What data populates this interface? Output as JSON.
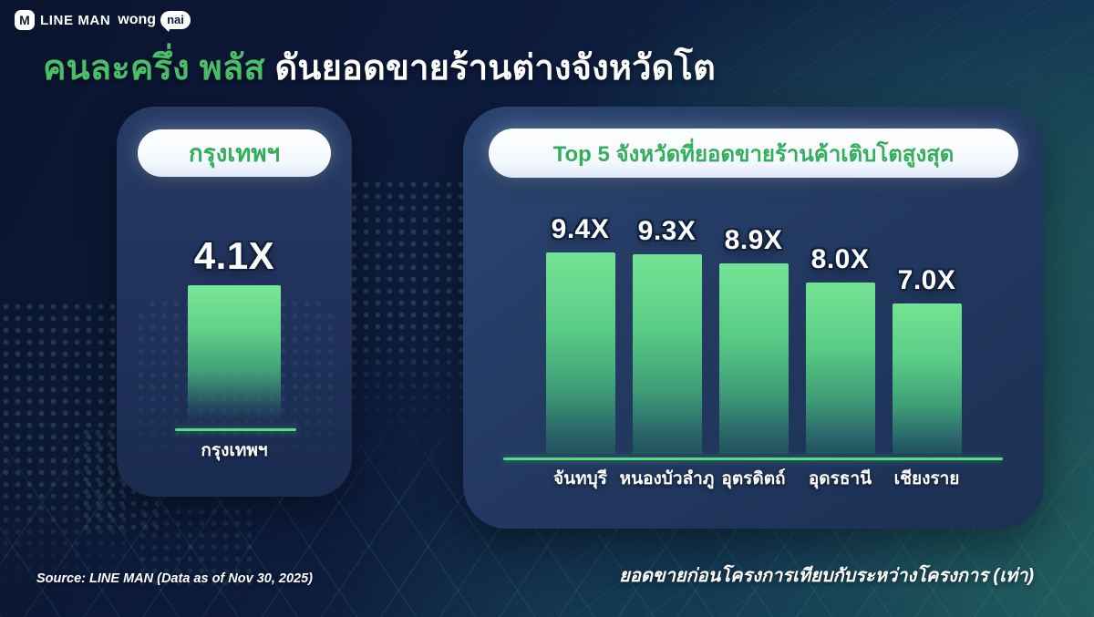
{
  "header": {
    "logo": {
      "m_icon": "M",
      "lineman": "LINE MAN",
      "wong": "wong",
      "nai": "nai"
    },
    "title_green": "คนละครึ่ง พลัส",
    "title_white": " ดันยอดขายร้านต่างจังหวัดโต"
  },
  "left_panel": {
    "pill_label": "กรุงเทพฯ"
  },
  "right_panel": {
    "pill_label": "Top 5 จังหวัดที่ยอดขายร้านค้าเติบโตสูงสุด"
  },
  "footer": {
    "source": "Source: LINE MAN (Data as of Nov 30, 2025)",
    "note": "ยอดขายก่อนโครงการเทียบกับระหว่างโครงการ (เท่า)"
  },
  "colors": {
    "background_navy": "#0D1B3C",
    "background_teal_glow": "#2C7662",
    "card_navy": "#22385F",
    "title_green": "#4BBD69",
    "pill_text_green": "#35AE5B",
    "bar_green_top": "#75E394",
    "axis_green": "#57DD85",
    "text_white": "#FFFFFF"
  },
  "chart_data": [
    {
      "type": "bar",
      "title": "กรุงเทพฯ",
      "categories": [
        "กรุงเทพฯ"
      ],
      "values": [
        4.1
      ],
      "value_labels": [
        "4.1X"
      ],
      "legend": "none",
      "grid": false,
      "note": "growth multiple of merchant sales, Bangkok"
    },
    {
      "type": "bar",
      "title": "Top 5 จังหวัดที่ยอดขายร้านค้าเติบโตสูงสุด",
      "categories": [
        "จันทบุรี",
        "หนองบัวลำภู",
        "อุตรดิตถ์",
        "อุดรธานี",
        "เชียงราย"
      ],
      "values": [
        9.4,
        9.3,
        8.9,
        8.0,
        7.0
      ],
      "value_labels": [
        "9.4X",
        "9.3X",
        "8.9X",
        "8.0X",
        "7.0X"
      ],
      "legend": "none",
      "grid": false,
      "note": "growth multiple of merchant sales, top 5 provinces"
    }
  ]
}
